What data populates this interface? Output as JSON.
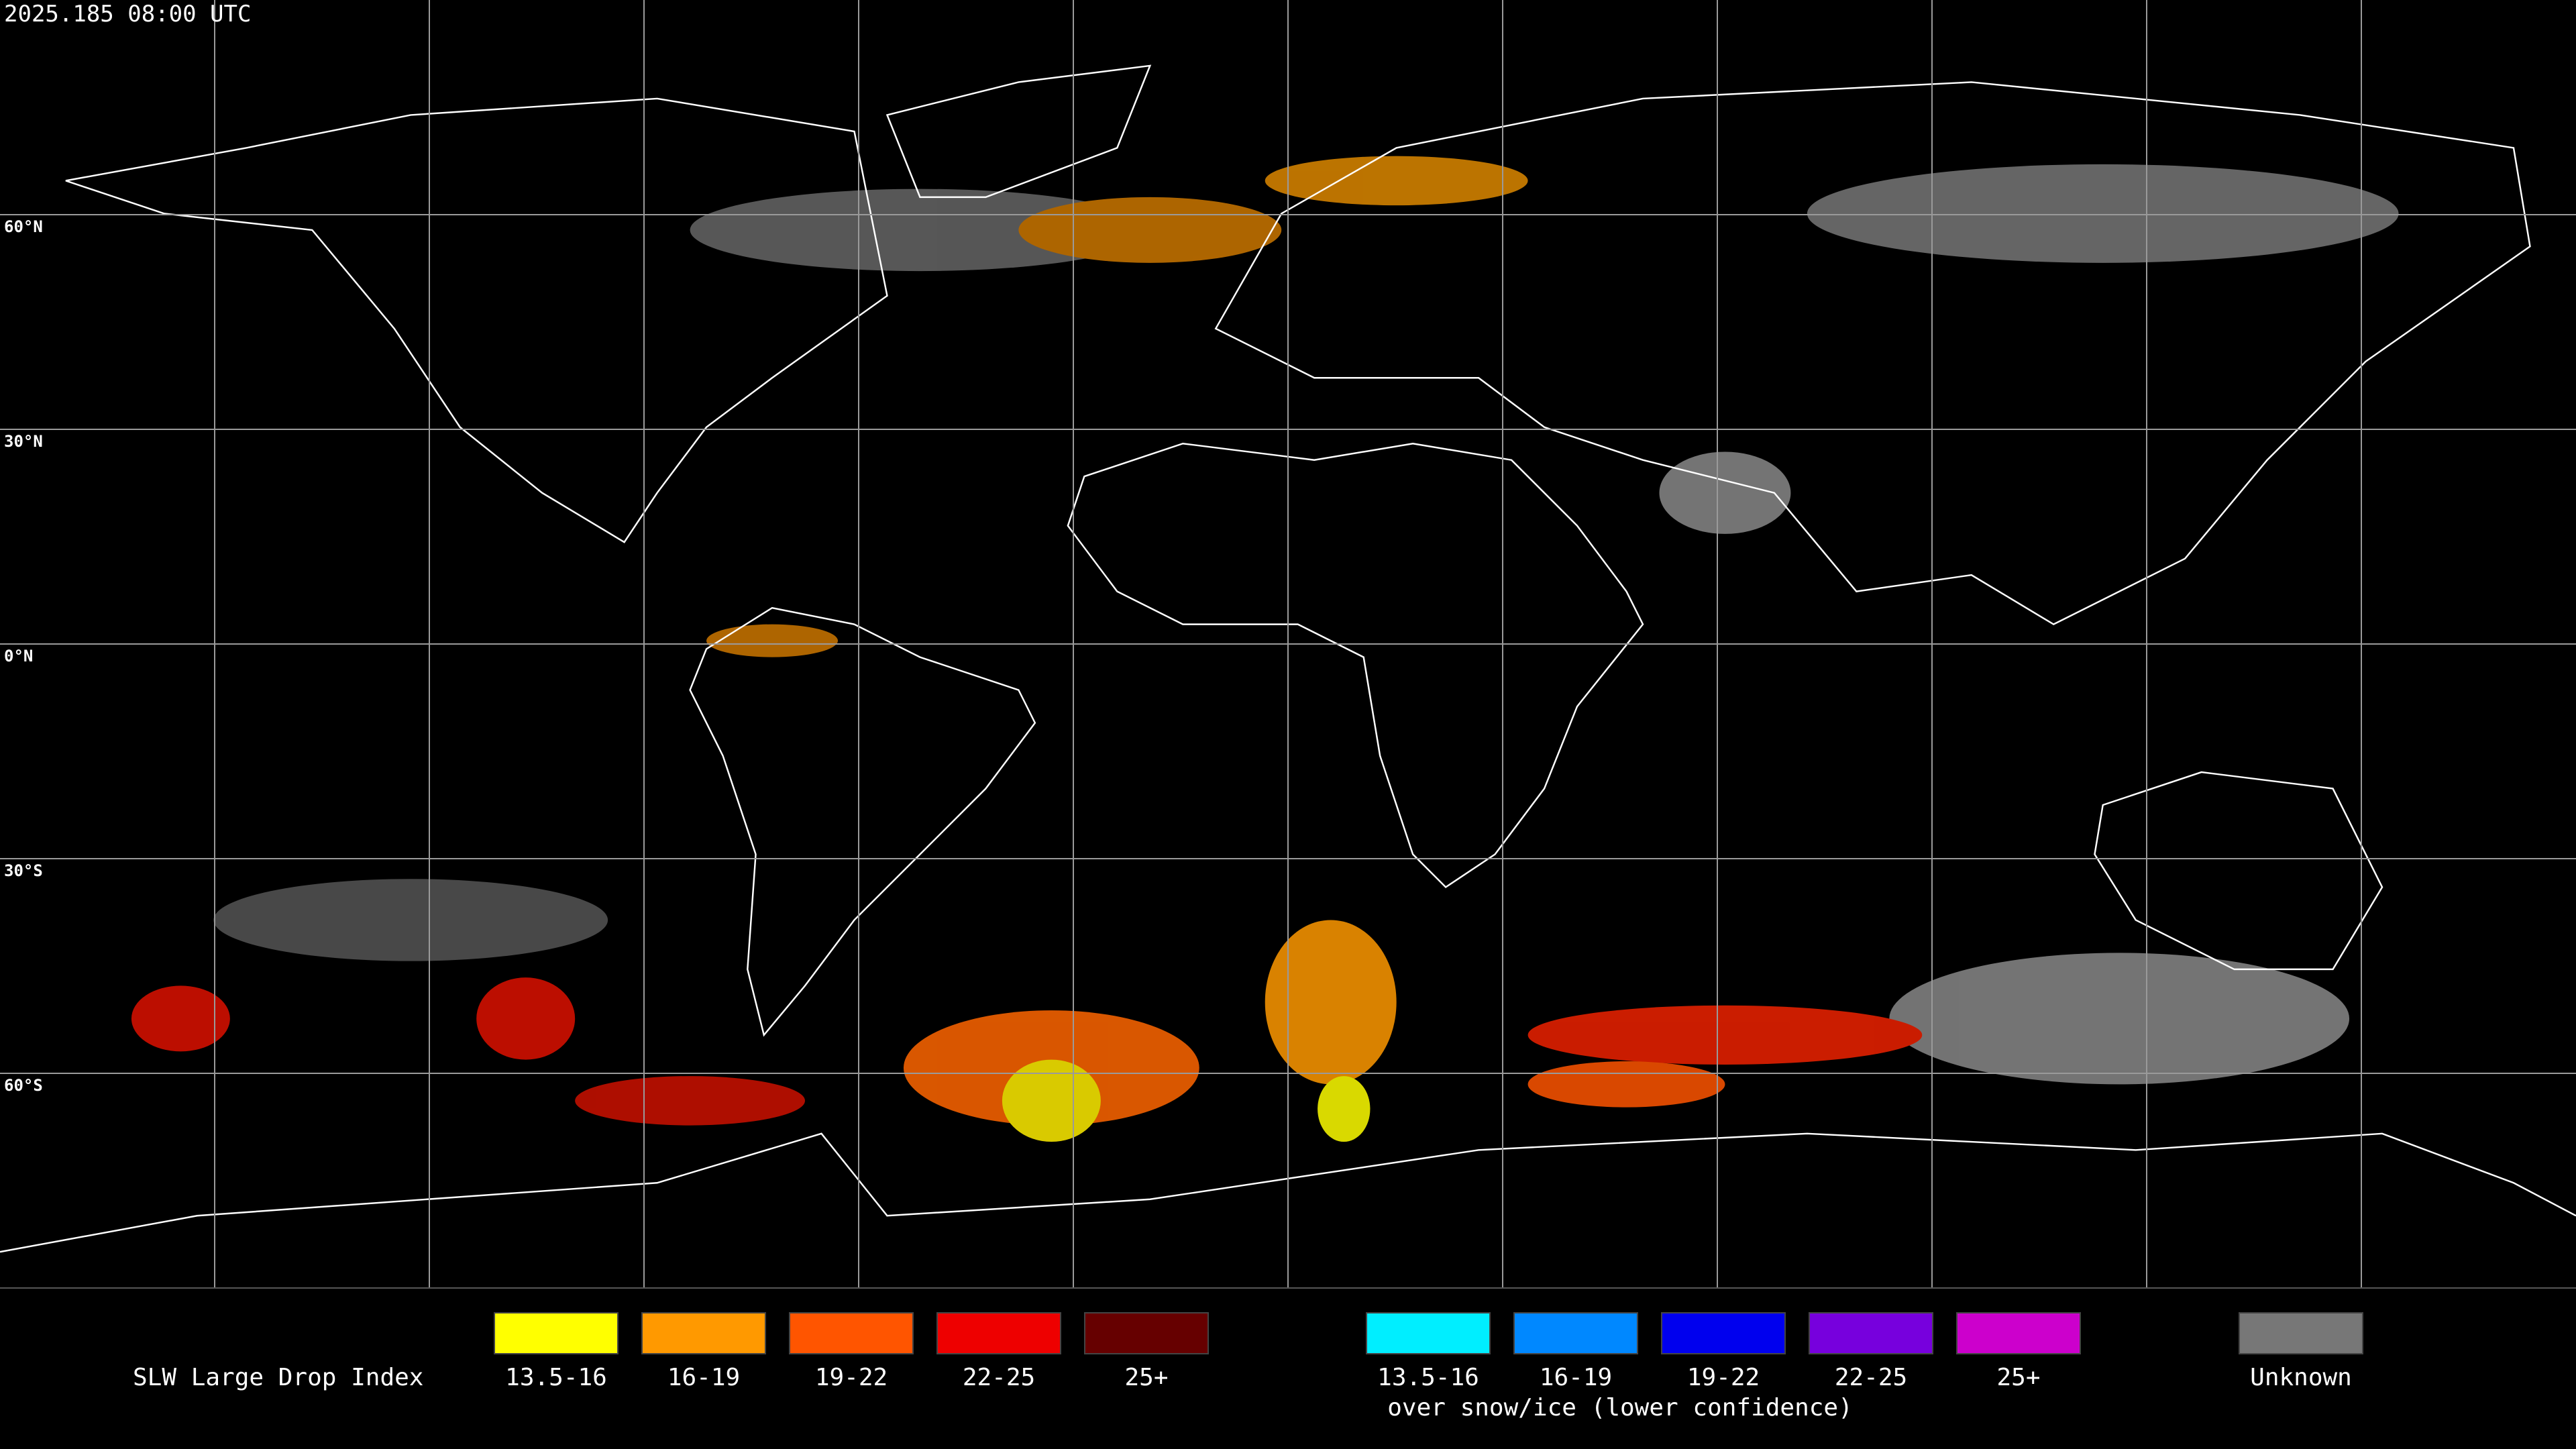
{
  "header": {
    "timestamp": "2025.185 08:00 UTC"
  },
  "grid": {
    "lat_labels": [
      "60°N",
      "30°N",
      "0°N",
      "30°S",
      "60°S"
    ]
  },
  "legend": {
    "title": "SLW Large Drop Index",
    "items": [
      {
        "label": "13.5-16",
        "color": "#ffff00"
      },
      {
        "label": "16-19",
        "color": "#ff9900"
      },
      {
        "label": "19-22",
        "color": "#ff5500"
      },
      {
        "label": "22-25",
        "color": "#ee0000"
      },
      {
        "label": "25+",
        "color": "#660000"
      }
    ],
    "snow_items": [
      {
        "label": "13.5-16",
        "color": "#00eeff"
      },
      {
        "label": "16-19",
        "color": "#0088ff"
      },
      {
        "label": "19-22",
        "color": "#0000ee"
      },
      {
        "label": "22-25",
        "color": "#7700dd"
      },
      {
        "label": "25+",
        "color": "#cc00cc"
      }
    ],
    "snow_note": "over snow/ice (lower confidence)",
    "unknown": {
      "label": "Unknown",
      "color": "#777777"
    }
  }
}
